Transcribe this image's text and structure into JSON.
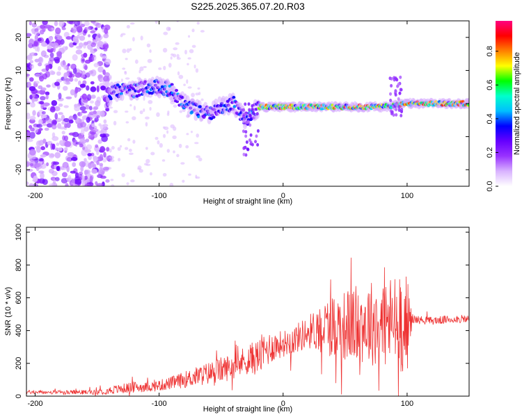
{
  "title": "S225.2025.365.07.20.R03",
  "chart_data": [
    {
      "type": "heatmap",
      "xlabel": "Height of straight line (km)",
      "ylabel": "Frequency (Hz)",
      "xlim": [
        -207,
        150
      ],
      "ylim": [
        -25,
        25
      ],
      "xticks": [
        -200,
        -100,
        0,
        100
      ],
      "yticks": [
        -20,
        -10,
        0,
        10,
        20
      ],
      "colorbar": {
        "label": "Normalized spectral amplitude",
        "range": [
          0,
          0.98
        ],
        "ticks": [
          "0.0",
          "0.2",
          "0.4",
          "0.6",
          "0.8"
        ],
        "colormap": [
          "#ffffff",
          "#d9b3ff",
          "#9933ff",
          "#6600ff",
          "#0000ff",
          "#00bfff",
          "#00ffcc",
          "#00ff00",
          "#ffff00",
          "#ff8000",
          "#ff0000",
          "#ff0080"
        ]
      },
      "ridge": {
        "x": [
          -140,
          -130,
          -120,
          -110,
          -100,
          -90,
          -80,
          -70,
          -60,
          -50,
          -40,
          -30,
          -20,
          -10,
          0,
          20,
          40,
          60,
          80,
          100,
          120,
          140,
          150
        ],
        "freq": [
          3,
          4,
          4,
          5,
          5,
          4,
          0,
          -2,
          -3,
          -1,
          0,
          -5,
          -1,
          -1,
          -1,
          -1,
          -1,
          -1,
          -1,
          0,
          0,
          0,
          0
        ]
      }
    },
    {
      "type": "line",
      "xlabel": "Height of straight line (km)",
      "ylabel": "SNR (10 * v/v)",
      "xlim": [
        -207,
        150
      ],
      "ylim": [
        0,
        1030
      ],
      "xticks": [
        -200,
        -100,
        0,
        100
      ],
      "yticks": [
        0,
        200,
        400,
        600,
        800,
        1000
      ],
      "color": "#ee3333",
      "envelope": {
        "x": [
          -207,
          -180,
          -150,
          -140,
          -130,
          -120,
          -110,
          -100,
          -90,
          -80,
          -70,
          -60,
          -50,
          -40,
          -30,
          -20,
          -17,
          -10,
          0,
          10,
          20,
          30,
          40,
          50,
          60,
          70,
          80,
          90,
          95,
          100,
          104,
          110,
          120,
          130,
          140,
          150
        ],
        "mid": [
          25,
          22,
          25,
          35,
          45,
          55,
          55,
          65,
          80,
          100,
          120,
          140,
          160,
          185,
          220,
          240,
          260,
          300,
          320,
          350,
          390,
          420,
          430,
          430,
          440,
          450,
          450,
          450,
          460,
          440,
          470,
          465,
          460,
          465,
          470,
          470
        ],
        "amp": [
          12,
          12,
          15,
          25,
          30,
          35,
          30,
          35,
          40,
          50,
          60,
          70,
          80,
          80,
          90,
          110,
          120,
          100,
          80,
          90,
          100,
          150,
          200,
          220,
          240,
          260,
          280,
          300,
          320,
          300,
          30,
          25,
          25,
          25,
          25,
          25
        ]
      }
    }
  ]
}
